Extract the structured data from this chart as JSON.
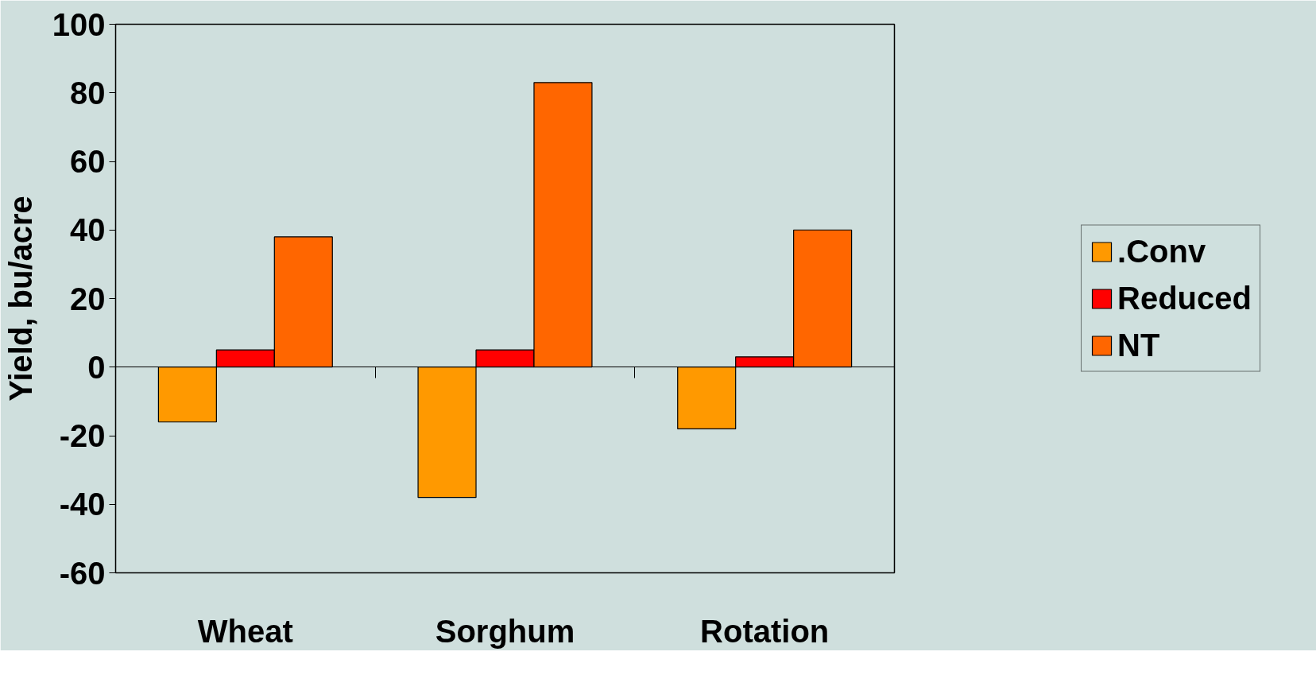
{
  "chart_data": {
    "type": "bar",
    "ylabel": "Yield, bu/acre",
    "categories": [
      "Wheat",
      "Sorghum",
      "Rotation"
    ],
    "series": [
      {
        "name": ".Conv",
        "color": "#ff9900",
        "values": [
          -16,
          -38,
          -18
        ]
      },
      {
        "name": "Reduced",
        "color": "#ff0000",
        "values": [
          5,
          5,
          3
        ]
      },
      {
        "name": "NT",
        "color": "#ff6600",
        "values": [
          38,
          83,
          40
        ]
      }
    ],
    "ylim": [
      -60,
      100
    ],
    "yticks": [
      -60,
      -40,
      -20,
      0,
      20,
      40,
      60,
      80,
      100
    ],
    "legend": "right"
  }
}
